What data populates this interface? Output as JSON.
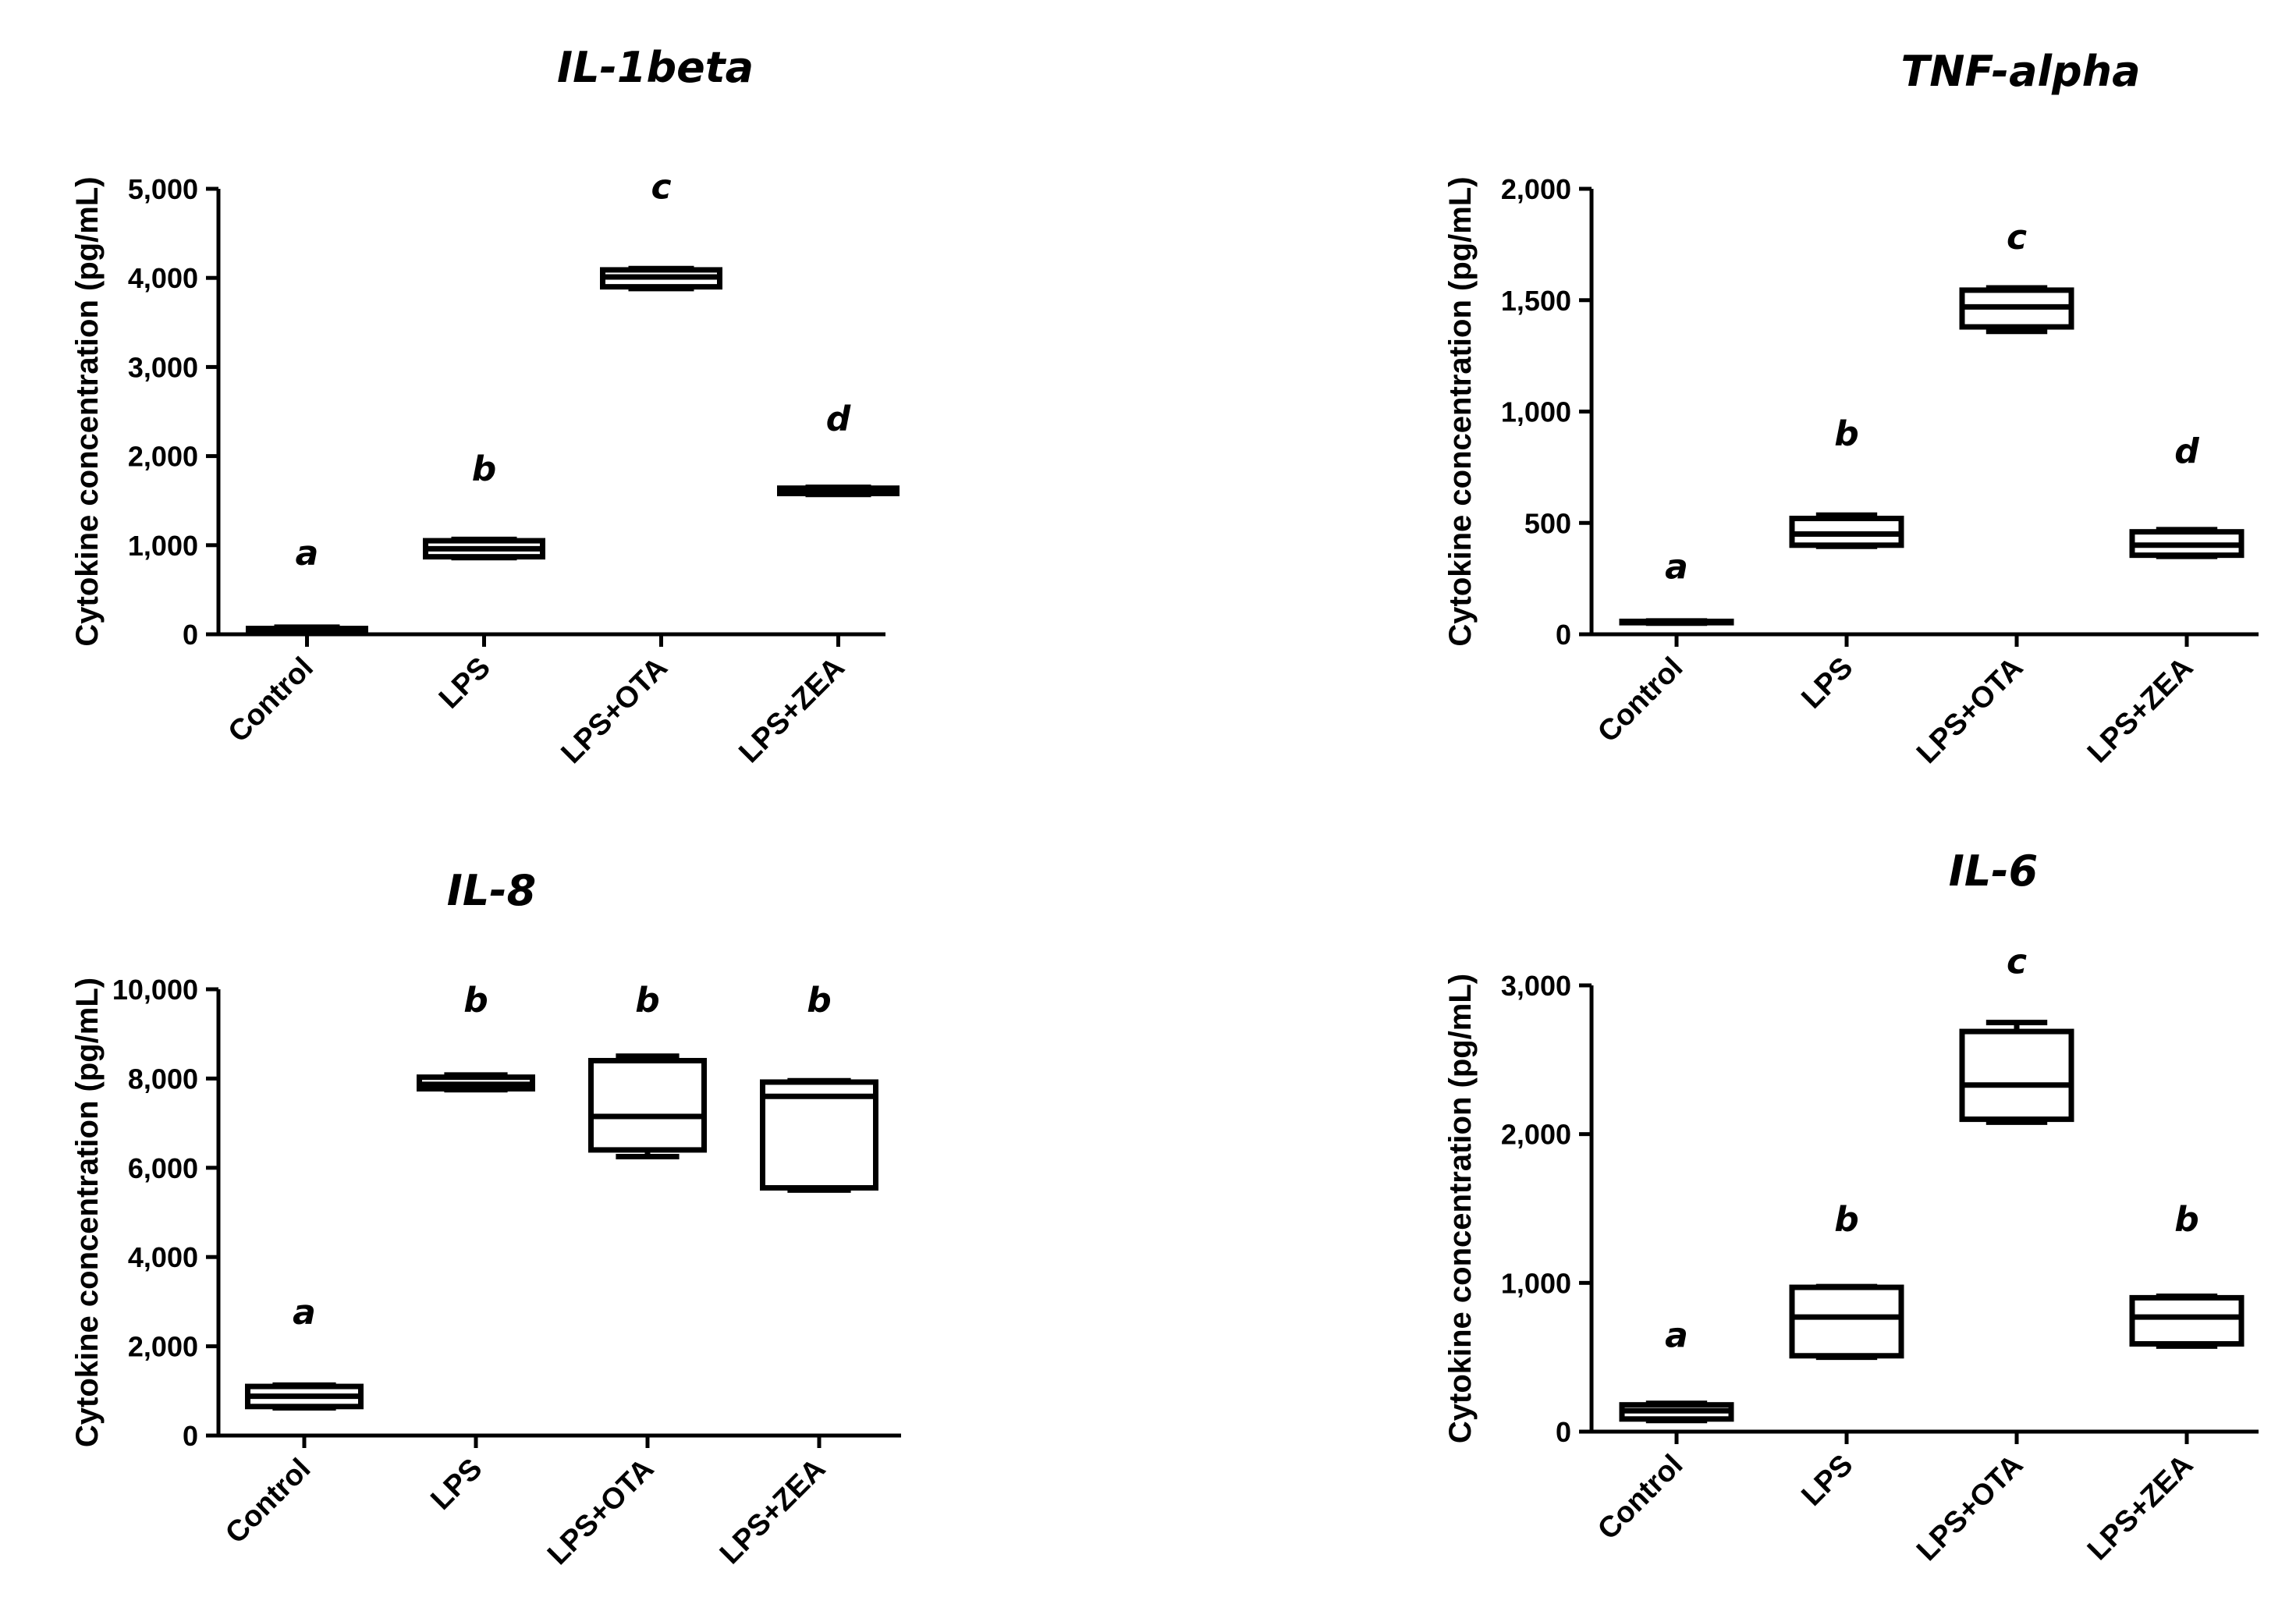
{
  "chart_data": [
    {
      "type": "box",
      "title": "IL-1beta",
      "ylabel": "Cytokine concentration (pg/mL)",
      "ylim": [
        0,
        5000
      ],
      "yticks": [
        "0",
        "1,000",
        "2,000",
        "3,000",
        "4,000",
        "5,000"
      ],
      "categories": [
        "Control",
        "LPS",
        "LPS+OTA",
        "LPS+ZEA"
      ],
      "boxes": [
        {
          "min": 30,
          "q1": 40,
          "median": 55,
          "q3": 65,
          "max": 80
        },
        {
          "min": 860,
          "q1": 870,
          "median": 960,
          "q3": 1050,
          "max": 1065
        },
        {
          "min": 3880,
          "q1": 3900,
          "median": 4010,
          "q3": 4090,
          "max": 4105
        },
        {
          "min": 1570,
          "q1": 1580,
          "median": 1610,
          "q3": 1640,
          "max": 1650
        }
      ],
      "letters": [
        "a",
        "b",
        "c",
        "d"
      ],
      "letter_values": [
        780,
        1730,
        4890,
        2290
      ]
    },
    {
      "type": "box",
      "title": "TNF-alpha",
      "ylabel": "Cytokine concentration (pg/mL)",
      "ylim": [
        0,
        2000
      ],
      "yticks": [
        "0",
        "500",
        "1,000",
        "1,500",
        "2,000"
      ],
      "categories": [
        "Control",
        "LPS",
        "LPS+OTA",
        "LPS+ZEA"
      ],
      "boxes": [
        {
          "min": 50,
          "q1": 52,
          "median": 55,
          "q3": 58,
          "max": 60
        },
        {
          "min": 395,
          "q1": 400,
          "median": 450,
          "q3": 520,
          "max": 535
        },
        {
          "min": 1360,
          "q1": 1380,
          "median": 1470,
          "q3": 1545,
          "max": 1555
        },
        {
          "min": 350,
          "q1": 355,
          "median": 400,
          "q3": 460,
          "max": 470
        }
      ],
      "letters": [
        "a",
        "b",
        "c",
        "d"
      ],
      "letter_values": [
        250,
        850,
        1730,
        770
      ]
    },
    {
      "type": "box",
      "title": "IL-8",
      "ylabel": "Cytokine concentration (pg/mL)",
      "ylim": [
        0,
        10000
      ],
      "yticks": [
        "0",
        "2,000",
        "4,000",
        "6,000",
        "8,000",
        "10,000"
      ],
      "categories": [
        "Control",
        "LPS",
        "LPS+OTA",
        "LPS+ZEA"
      ],
      "boxes": [
        {
          "min": 620,
          "q1": 650,
          "median": 880,
          "q3": 1100,
          "max": 1130
        },
        {
          "min": 7750,
          "q1": 7770,
          "median": 7870,
          "q3": 8030,
          "max": 8080
        },
        {
          "min": 6250,
          "q1": 6400,
          "median": 7150,
          "q3": 8400,
          "max": 8500
        },
        {
          "min": 5500,
          "q1": 5550,
          "median": 7600,
          "q3": 7920,
          "max": 7950
        }
      ],
      "letters": [
        "a",
        "b",
        "b",
        "b"
      ],
      "letter_values": [
        2500,
        9500,
        9500,
        9500
      ]
    },
    {
      "type": "box",
      "title": "IL-6",
      "ylabel": "Cytokine concentration (pg/mL)",
      "ylim": [
        0,
        3000
      ],
      "yticks": [
        "0",
        "1,000",
        "2,000",
        "3,000"
      ],
      "categories": [
        "Control",
        "LPS",
        "LPS+OTA",
        "LPS+ZEA"
      ],
      "boxes": [
        {
          "min": 75,
          "q1": 85,
          "median": 140,
          "q3": 180,
          "max": 190
        },
        {
          "min": 500,
          "q1": 510,
          "median": 770,
          "q3": 970,
          "max": 975
        },
        {
          "min": 2080,
          "q1": 2100,
          "median": 2330,
          "q3": 2690,
          "max": 2750
        },
        {
          "min": 575,
          "q1": 590,
          "median": 770,
          "q3": 900,
          "max": 910
        }
      ],
      "letters": [
        "a",
        "b",
        "c",
        "b"
      ],
      "letter_values": [
        570,
        1350,
        3080,
        1350
      ]
    }
  ]
}
